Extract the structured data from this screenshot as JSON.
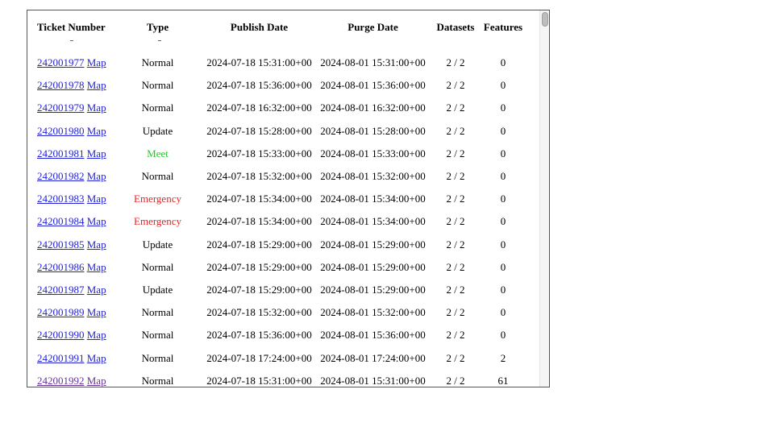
{
  "headers": {
    "ticket": "Ticket Number",
    "type": "Type",
    "publish": "Publish Date",
    "purge": "Purge Date",
    "datasets": "Datasets",
    "features": "Features"
  },
  "map_label": "Map",
  "rows": [
    {
      "ticket": "242001977",
      "type": "Normal",
      "publish": "2024-07-18 15:31:00+00",
      "purge": "2024-08-01 15:31:00+00",
      "datasets": "2 / 2",
      "features": "0"
    },
    {
      "ticket": "242001978",
      "type": "Normal",
      "publish": "2024-07-18 15:36:00+00",
      "purge": "2024-08-01 15:36:00+00",
      "datasets": "2 / 2",
      "features": "0"
    },
    {
      "ticket": "242001979",
      "type": "Normal",
      "publish": "2024-07-18 16:32:00+00",
      "purge": "2024-08-01 16:32:00+00",
      "datasets": "2 / 2",
      "features": "0"
    },
    {
      "ticket": "242001980",
      "type": "Update",
      "publish": "2024-07-18 15:28:00+00",
      "purge": "2024-08-01 15:28:00+00",
      "datasets": "2 / 2",
      "features": "0"
    },
    {
      "ticket": "242001981",
      "type": "Meet",
      "publish": "2024-07-18 15:33:00+00",
      "purge": "2024-08-01 15:33:00+00",
      "datasets": "2 / 2",
      "features": "0"
    },
    {
      "ticket": "242001982",
      "type": "Normal",
      "publish": "2024-07-18 15:32:00+00",
      "purge": "2024-08-01 15:32:00+00",
      "datasets": "2 / 2",
      "features": "0"
    },
    {
      "ticket": "242001983",
      "type": "Emergency",
      "publish": "2024-07-18 15:34:00+00",
      "purge": "2024-08-01 15:34:00+00",
      "datasets": "2 / 2",
      "features": "0"
    },
    {
      "ticket": "242001984",
      "type": "Emergency",
      "publish": "2024-07-18 15:34:00+00",
      "purge": "2024-08-01 15:34:00+00",
      "datasets": "2 / 2",
      "features": "0"
    },
    {
      "ticket": "242001985",
      "type": "Update",
      "publish": "2024-07-18 15:29:00+00",
      "purge": "2024-08-01 15:29:00+00",
      "datasets": "2 / 2",
      "features": "0"
    },
    {
      "ticket": "242001986",
      "type": "Normal",
      "publish": "2024-07-18 15:29:00+00",
      "purge": "2024-08-01 15:29:00+00",
      "datasets": "2 / 2",
      "features": "0"
    },
    {
      "ticket": "242001987",
      "type": "Update",
      "publish": "2024-07-18 15:29:00+00",
      "purge": "2024-08-01 15:29:00+00",
      "datasets": "2 / 2",
      "features": "0"
    },
    {
      "ticket": "242001989",
      "type": "Normal",
      "publish": "2024-07-18 15:32:00+00",
      "purge": "2024-08-01 15:32:00+00",
      "datasets": "2 / 2",
      "features": "0"
    },
    {
      "ticket": "242001990",
      "type": "Normal",
      "publish": "2024-07-18 15:36:00+00",
      "purge": "2024-08-01 15:36:00+00",
      "datasets": "2 / 2",
      "features": "0"
    },
    {
      "ticket": "242001991",
      "type": "Normal",
      "publish": "2024-07-18 17:24:00+00",
      "purge": "2024-08-01 17:24:00+00",
      "datasets": "2 / 2",
      "features": "2"
    },
    {
      "ticket": "242001992",
      "type": "Normal",
      "publish": "2024-07-18 15:31:00+00",
      "purge": "2024-08-01 15:31:00+00",
      "datasets": "2 / 2",
      "features": "61",
      "visited": true
    }
  ],
  "colors": {
    "link": "#2323d6",
    "visited_link": "#663399",
    "meet": "#22cc22",
    "emergency": "#ee2222"
  }
}
